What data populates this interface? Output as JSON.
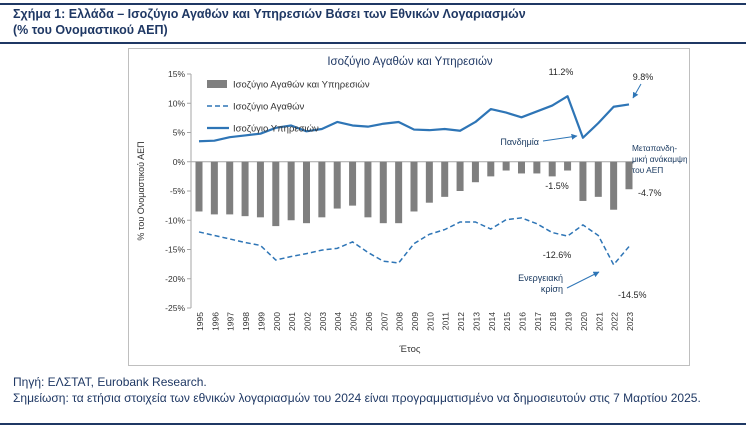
{
  "header": {
    "line1": "Σχήμα 1: Ελλάδα – Ισοζύγιο Αγαθών και Υπηρεσιών Βάσει των Εθνικών Λογαριασμών",
    "line2": "(% του Ονομαστικού ΑΕΠ)"
  },
  "footer": {
    "source": "Πηγή: ΕΛΣΤΑΤ, Eurobank Research.",
    "note": "Σημείωση: τα ετήσια στοιχεία των εθνικών λογαριασμών του 2024 είναι προγραμματισμένο να δημοσιευτούν στις 7 Μαρτίου 2025."
  },
  "colors": {
    "accent_navy": "#1F3864",
    "bar_gray": "#7F7F7F",
    "line_blue": "#2E75B6",
    "annotation_navy": "#17375E",
    "annotation_number": "#262626",
    "axis_gray": "#A6A6A6",
    "tick_text": "#333333"
  },
  "chart_data": {
    "type": "bar",
    "title": "Ισοζύγιο Αγαθών και Υπηρεσιών",
    "xlabel": "Έτος",
    "ylabel": "% του Ονομαστικού ΑΕΠ",
    "ylim": [
      -25,
      15
    ],
    "grid": false,
    "legend_position": "top-left",
    "y_ticks": [
      {
        "v": 15,
        "label": "15%"
      },
      {
        "v": 10,
        "label": "10%"
      },
      {
        "v": 5,
        "label": "5%"
      },
      {
        "v": 0,
        "label": "0%"
      },
      {
        "v": -5,
        "label": "-5%"
      },
      {
        "v": -10,
        "label": "-10%"
      },
      {
        "v": -15,
        "label": "-15%"
      },
      {
        "v": -20,
        "label": "-20%"
      },
      {
        "v": -25,
        "label": "-25%"
      }
    ],
    "categories": [
      1995,
      1996,
      1997,
      1998,
      1999,
      2000,
      2001,
      2002,
      2003,
      2004,
      2005,
      2006,
      2007,
      2008,
      2009,
      2010,
      2011,
      2012,
      2013,
      2014,
      2015,
      2016,
      2017,
      2018,
      2019,
      2020,
      2021,
      2022,
      2023
    ],
    "series": [
      {
        "name": "Ισοζύγιο Αγαθών και Υπηρεσιών",
        "type": "bar",
        "color": "#7F7F7F",
        "values": [
          -8.5,
          -9.0,
          -9.0,
          -9.3,
          -9.5,
          -11.0,
          -10.0,
          -10.5,
          -9.5,
          -8.0,
          -7.5,
          -9.5,
          -10.5,
          -10.5,
          -8.5,
          -7.0,
          -6.0,
          -5.0,
          -3.5,
          -2.5,
          -1.5,
          -2.0,
          -2.0,
          -2.5,
          -1.5,
          -6.7,
          -6.0,
          -8.2,
          -4.7
        ]
      },
      {
        "name": "Ισοζύγιο Αγαθών",
        "type": "line-dashed",
        "color": "#2E75B6",
        "values": [
          -12.0,
          -12.6,
          -13.2,
          -13.8,
          -14.3,
          -16.8,
          -16.2,
          -15.7,
          -15.1,
          -14.8,
          -13.7,
          -15.5,
          -17.0,
          -17.3,
          -14.0,
          -12.4,
          -11.6,
          -10.3,
          -10.3,
          -11.5,
          -9.9,
          -9.6,
          -10.6,
          -12.1,
          -12.7,
          -10.8,
          -12.6,
          -17.6,
          -14.5
        ]
      },
      {
        "name": "Ισοζύγιο Υπηρεσιών",
        "type": "line",
        "color": "#2E75B6",
        "values": [
          3.5,
          3.6,
          4.2,
          4.5,
          4.8,
          5.8,
          6.2,
          5.2,
          5.6,
          6.8,
          6.2,
          6.0,
          6.5,
          6.8,
          5.5,
          5.4,
          5.6,
          5.3,
          6.8,
          9.0,
          8.4,
          7.6,
          8.6,
          9.6,
          11.2,
          4.1,
          6.6,
          9.4,
          9.8
        ]
      }
    ],
    "annotations": [
      {
        "id": "services-peak",
        "text": "11.2%"
      },
      {
        "id": "services-end",
        "text": "9.8%"
      },
      {
        "id": "pandemic",
        "text": "Πανδημία"
      },
      {
        "id": "recovery",
        "text": "Μεταπανδη-\nμική ανάκαμψη\nτου ΑΕΠ"
      },
      {
        "id": "total-2019",
        "text": "-1.5%"
      },
      {
        "id": "total-2023",
        "text": "-4.7%"
      },
      {
        "id": "goods-2021",
        "text": "-12.6%"
      },
      {
        "id": "energy-crisis",
        "text": "Ενεργειακή\nκρίση"
      },
      {
        "id": "goods-2023",
        "text": "-14.5%"
      }
    ]
  }
}
